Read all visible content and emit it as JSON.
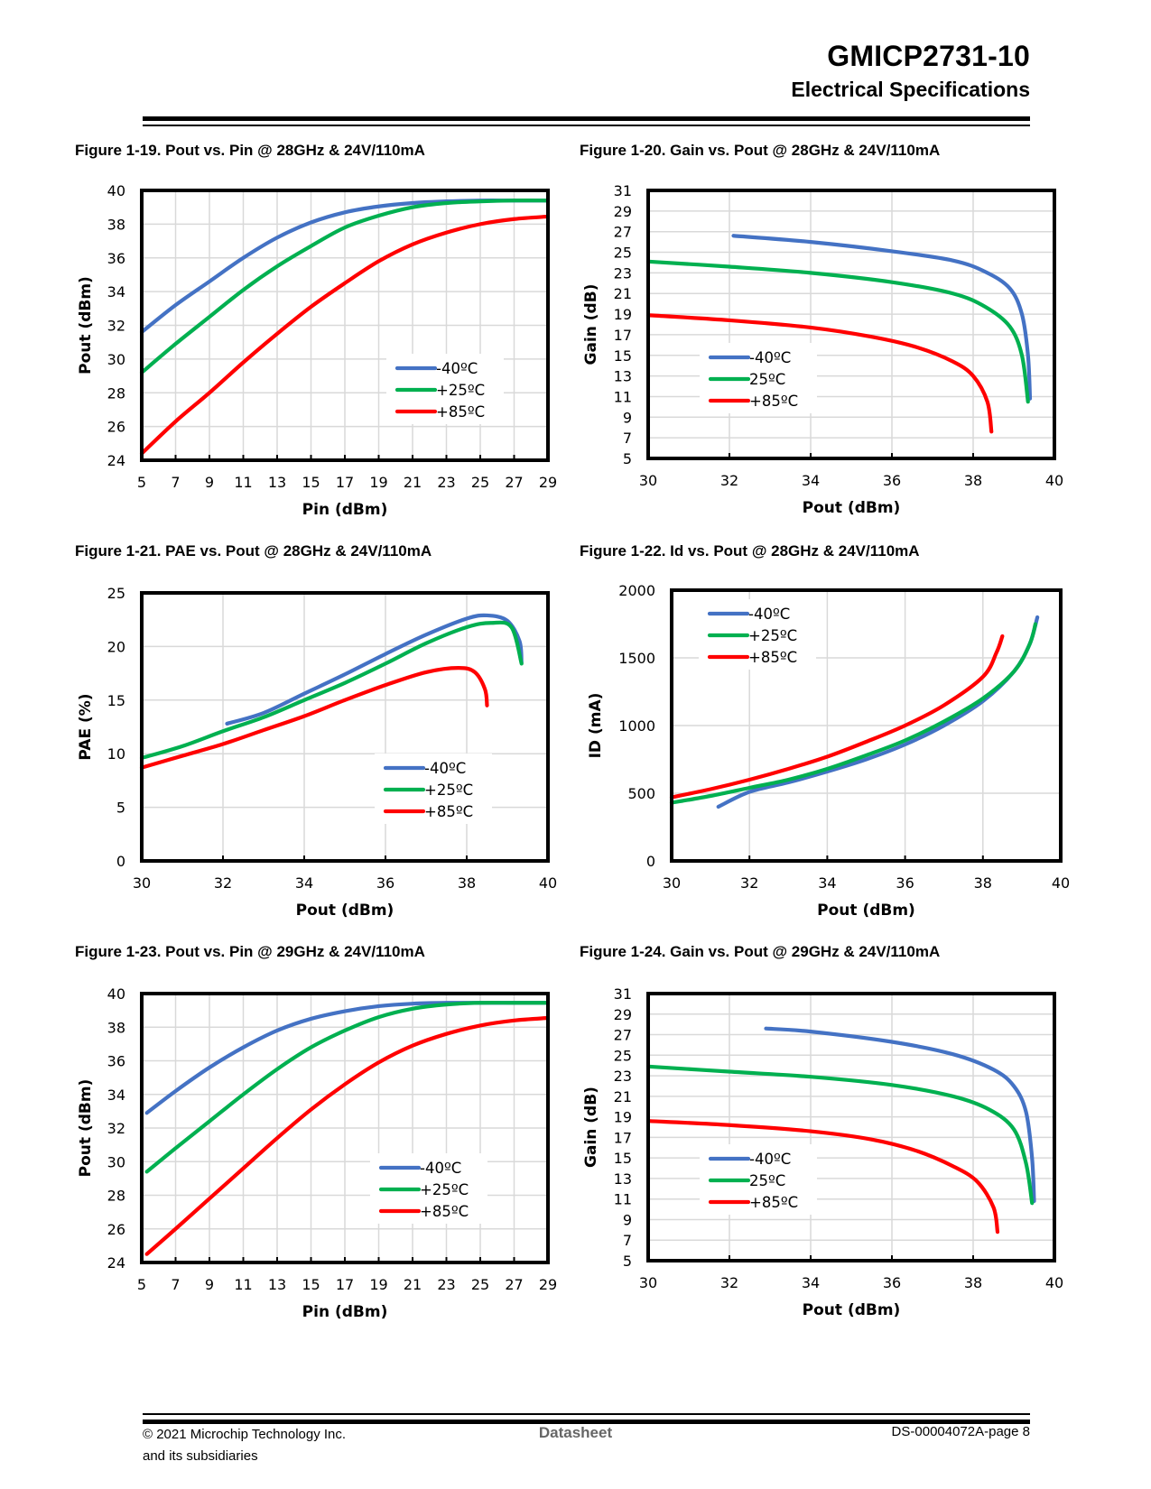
{
  "header": {
    "title": "GMICP2731-10",
    "subtitle": "Electrical Specifications"
  },
  "footer": {
    "copyright_line1": "© 2021 Microchip Technology Inc.",
    "copyright_line2": "and its subsidiaries",
    "center": "Datasheet",
    "page": "DS-00004072A-page 8"
  },
  "colors": {
    "cold": "#4472C4",
    "room": "#00B050",
    "hot": "#FF0000"
  },
  "chart_data": [
    {
      "id": "fig-1-19",
      "caption": "Figure 1-19.  Pout vs. Pin @ 28GHz & 24V/110mA",
      "type": "line",
      "xlabel": "Pin (dBm)",
      "ylabel": "Pout (dBm)",
      "xlim": [
        5,
        29
      ],
      "ylim": [
        24,
        40
      ],
      "xticks": [
        5,
        7,
        9,
        11,
        13,
        15,
        17,
        19,
        21,
        23,
        25,
        27,
        29
      ],
      "yticks": [
        24,
        26,
        28,
        30,
        32,
        34,
        36,
        38,
        40
      ],
      "xgrid": [
        5,
        7,
        9,
        11,
        13,
        15,
        17,
        19,
        21,
        23,
        25,
        27,
        29
      ],
      "ygrid": [
        24,
        26,
        28,
        30,
        32,
        34,
        36,
        38,
        40
      ],
      "grid": true,
      "legend": "bottom-right",
      "series": [
        {
          "name": "-40ºC",
          "color": "#4472C4",
          "x": [
            5,
            7,
            9,
            11,
            13,
            15,
            17,
            19,
            21,
            23,
            25,
            27,
            29
          ],
          "y": [
            31.6,
            33.2,
            34.6,
            36.0,
            37.2,
            38.1,
            38.7,
            39.05,
            39.25,
            39.35,
            39.4,
            39.4,
            39.4
          ]
        },
        {
          "name": "+25ºC",
          "color": "#00B050",
          "x": [
            5,
            7,
            9,
            11,
            13,
            15,
            17,
            19,
            21,
            23,
            25,
            27,
            29
          ],
          "y": [
            29.2,
            30.9,
            32.5,
            34.1,
            35.5,
            36.7,
            37.8,
            38.5,
            39.0,
            39.25,
            39.35,
            39.4,
            39.4
          ]
        },
        {
          "name": "+85ºC",
          "color": "#FF0000",
          "x": [
            5,
            7,
            9,
            11,
            13,
            15,
            17,
            19,
            21,
            23,
            25,
            27,
            29
          ],
          "y": [
            24.4,
            26.3,
            28.0,
            29.8,
            31.5,
            33.1,
            34.5,
            35.8,
            36.8,
            37.5,
            38.0,
            38.3,
            38.45
          ]
        }
      ]
    },
    {
      "id": "fig-1-20",
      "caption": "Figure 1-20.  Gain vs. Pout @ 28GHz & 24V/110mA",
      "type": "line",
      "xlabel": "Pout (dBm)",
      "ylabel": "Gain (dB)",
      "xlim": [
        30,
        40
      ],
      "ylim": [
        5,
        31
      ],
      "xticks": [
        30,
        32,
        34,
        36,
        38,
        40
      ],
      "yticks": [
        5,
        7,
        9,
        11,
        13,
        15,
        17,
        19,
        21,
        23,
        25,
        27,
        29,
        31
      ],
      "xgrid": [
        30,
        32,
        34,
        36,
        38,
        40
      ],
      "ygrid": [
        5,
        7,
        9,
        11,
        13,
        15,
        17,
        19,
        21,
        23,
        25,
        27,
        29,
        31
      ],
      "grid": true,
      "legend": "bottom-left",
      "series": [
        {
          "name": "-40ºC",
          "color": "#4472C4",
          "x": [
            32.1,
            34,
            36,
            37.5,
            38.3,
            38.9,
            39.2,
            39.35,
            39.4
          ],
          "y": [
            26.6,
            26.0,
            25.1,
            24.2,
            23.1,
            21.5,
            19.0,
            15.0,
            10.8
          ]
        },
        {
          "name": "25ºC",
          "color": "#00B050",
          "x": [
            30,
            32,
            34,
            36,
            37.5,
            38.3,
            38.9,
            39.2,
            39.35
          ],
          "y": [
            24.1,
            23.6,
            23.0,
            22.1,
            21.0,
            19.7,
            17.8,
            15.0,
            10.5
          ]
        },
        {
          "name": "+85ºC",
          "color": "#FF0000",
          "x": [
            30,
            32,
            34,
            35.5,
            36.6,
            37.5,
            38.0,
            38.35,
            38.45
          ],
          "y": [
            18.9,
            18.4,
            17.7,
            16.8,
            15.8,
            14.4,
            13.0,
            10.5,
            7.6
          ]
        }
      ]
    },
    {
      "id": "fig-1-21",
      "caption": "Figure 1-21.  PAE vs. Pout @ 28GHz & 24V/110mA",
      "type": "line",
      "xlabel": "Pout (dBm)",
      "ylabel": "PAE (%)",
      "xlim": [
        30,
        40
      ],
      "ylim": [
        0,
        25
      ],
      "xticks": [
        30,
        32,
        34,
        36,
        38,
        40
      ],
      "yticks": [
        0,
        5,
        10,
        15,
        20,
        25
      ],
      "xgrid": [
        30,
        32,
        34,
        36,
        38,
        40
      ],
      "ygrid": [
        0,
        5,
        10,
        15,
        20,
        25
      ],
      "grid": true,
      "legend": "bottom-right",
      "series": [
        {
          "name": "-40ºC",
          "color": "#4472C4",
          "x": [
            32.1,
            33,
            34,
            35,
            36,
            37,
            38,
            38.5,
            39,
            39.3,
            39.35
          ],
          "y": [
            12.8,
            13.8,
            15.6,
            17.4,
            19.3,
            21.1,
            22.6,
            22.9,
            22.4,
            20.5,
            18.5
          ]
        },
        {
          "name": "+25ºC",
          "color": "#00B050",
          "x": [
            30,
            31,
            32,
            33,
            34,
            35,
            36,
            37,
            38,
            38.6,
            39.1,
            39.35
          ],
          "y": [
            9.6,
            10.7,
            12.1,
            13.4,
            15.0,
            16.6,
            18.4,
            20.3,
            21.8,
            22.2,
            21.8,
            18.4
          ]
        },
        {
          "name": "+85ºC",
          "color": "#FF0000",
          "x": [
            30,
            31,
            32,
            33,
            34,
            35,
            36,
            37,
            37.8,
            38.2,
            38.45,
            38.5
          ],
          "y": [
            8.7,
            9.8,
            10.9,
            12.2,
            13.5,
            15.0,
            16.4,
            17.6,
            18.0,
            17.6,
            16.0,
            14.5
          ]
        }
      ]
    },
    {
      "id": "fig-1-22",
      "caption": "Figure 1-22.  Id vs. Pout @ 28GHz & 24V/110mA",
      "type": "line",
      "xlabel": "Pout (dBm)",
      "ylabel": "ID (mA)",
      "xlim": [
        30,
        40
      ],
      "ylim": [
        0,
        2000
      ],
      "xticks": [
        30,
        32,
        34,
        36,
        38,
        40
      ],
      "yticks": [
        0,
        500,
        1000,
        1500,
        2000
      ],
      "xgrid": [
        30,
        32,
        34,
        36,
        38,
        40
      ],
      "ygrid": [
        0,
        500,
        1000,
        1500,
        2000
      ],
      "grid": true,
      "legend": "top-left",
      "series": [
        {
          "name": "-40ºC",
          "color": "#4472C4",
          "x": [
            31.2,
            32,
            33,
            34,
            35,
            36,
            37,
            38,
            38.8,
            39.2,
            39.4
          ],
          "y": [
            400,
            510,
            580,
            660,
            750,
            860,
            1000,
            1180,
            1400,
            1600,
            1800
          ]
        },
        {
          "name": "+25ºC",
          "color": "#00B050",
          "x": [
            30,
            31,
            32,
            33,
            34,
            35,
            36,
            37,
            38,
            38.8,
            39.2,
            39.35
          ],
          "y": [
            430,
            480,
            540,
            600,
            680,
            780,
            890,
            1030,
            1200,
            1400,
            1600,
            1750
          ]
        },
        {
          "name": "+85ºC",
          "color": "#FF0000",
          "x": [
            30,
            31,
            32,
            33,
            34,
            35,
            36,
            37,
            38,
            38.35,
            38.5
          ],
          "y": [
            470,
            530,
            600,
            680,
            770,
            880,
            1000,
            1150,
            1360,
            1540,
            1660
          ]
        }
      ]
    },
    {
      "id": "fig-1-23",
      "caption": "Figure 1-23.  Pout vs. Pin @ 29GHz & 24V/110mA",
      "type": "line",
      "xlabel": "Pin (dBm)",
      "ylabel": "Pout (dBm)",
      "xlim": [
        5,
        29
      ],
      "ylim": [
        24,
        40
      ],
      "xticks": [
        5,
        7,
        9,
        11,
        13,
        15,
        17,
        19,
        21,
        23,
        25,
        27,
        29
      ],
      "yticks": [
        24,
        26,
        28,
        30,
        32,
        34,
        36,
        38,
        40
      ],
      "xgrid": [
        5,
        7,
        9,
        11,
        13,
        15,
        17,
        19,
        21,
        23,
        25,
        27,
        29
      ],
      "ygrid": [
        24,
        26,
        28,
        30,
        32,
        34,
        36,
        38,
        40
      ],
      "grid": true,
      "legend": "bottom-right",
      "series": [
        {
          "name": "-40ºC",
          "color": "#4472C4",
          "x": [
            5.3,
            7,
            9,
            11,
            13,
            15,
            17,
            19,
            21,
            23,
            25,
            27,
            29
          ],
          "y": [
            32.9,
            34.2,
            35.6,
            36.8,
            37.8,
            38.5,
            38.95,
            39.25,
            39.4,
            39.45,
            39.45,
            39.45,
            39.45
          ]
        },
        {
          "name": "+25ºC",
          "color": "#00B050",
          "x": [
            5.3,
            7,
            9,
            11,
            13,
            15,
            17,
            19,
            21,
            23,
            25,
            27,
            29
          ],
          "y": [
            29.4,
            30.8,
            32.4,
            34.0,
            35.5,
            36.8,
            37.8,
            38.6,
            39.1,
            39.35,
            39.45,
            39.45,
            39.45
          ]
        },
        {
          "name": "+85ºC",
          "color": "#FF0000",
          "x": [
            5.3,
            7,
            9,
            11,
            13,
            15,
            17,
            19,
            21,
            23,
            25,
            27,
            29
          ],
          "y": [
            24.5,
            26.0,
            27.8,
            29.6,
            31.4,
            33.1,
            34.6,
            35.9,
            36.9,
            37.6,
            38.1,
            38.4,
            38.55
          ]
        }
      ]
    },
    {
      "id": "fig-1-24",
      "caption": "Figure 1-24.  Gain vs. Pout @ 29GHz & 24V/110mA",
      "type": "line",
      "xlabel": "Pout (dBm)",
      "ylabel": "Gain (dB)",
      "xlim": [
        30,
        40
      ],
      "ylim": [
        5,
        31
      ],
      "xticks": [
        30,
        32,
        34,
        36,
        38,
        40
      ],
      "yticks": [
        5,
        7,
        9,
        11,
        13,
        15,
        17,
        19,
        21,
        23,
        25,
        27,
        29,
        31
      ],
      "xgrid": [
        30,
        32,
        34,
        36,
        38,
        40
      ],
      "ygrid": [
        5,
        7,
        9,
        11,
        13,
        15,
        17,
        19,
        21,
        23,
        25,
        27,
        29,
        31
      ],
      "grid": true,
      "legend": "bottom-left",
      "series": [
        {
          "name": "-40ºC",
          "color": "#4472C4",
          "x": [
            32.9,
            34,
            36,
            37.5,
            38.5,
            39.0,
            39.3,
            39.45,
            39.5
          ],
          "y": [
            27.6,
            27.3,
            26.3,
            25.1,
            23.6,
            22.0,
            19.5,
            15.0,
            10.8
          ]
        },
        {
          "name": "25ºC",
          "color": "#00B050",
          "x": [
            30,
            32,
            34,
            36,
            37.5,
            38.4,
            39.0,
            39.3,
            39.45
          ],
          "y": [
            23.9,
            23.4,
            22.9,
            22.1,
            21.0,
            19.7,
            17.8,
            14.5,
            10.6
          ]
        },
        {
          "name": "+85ºC",
          "color": "#FF0000",
          "x": [
            30,
            32,
            34,
            35.5,
            36.6,
            37.5,
            38.1,
            38.5,
            38.6
          ],
          "y": [
            18.6,
            18.2,
            17.6,
            16.8,
            15.7,
            14.2,
            12.7,
            10.2,
            7.8
          ]
        }
      ]
    }
  ]
}
